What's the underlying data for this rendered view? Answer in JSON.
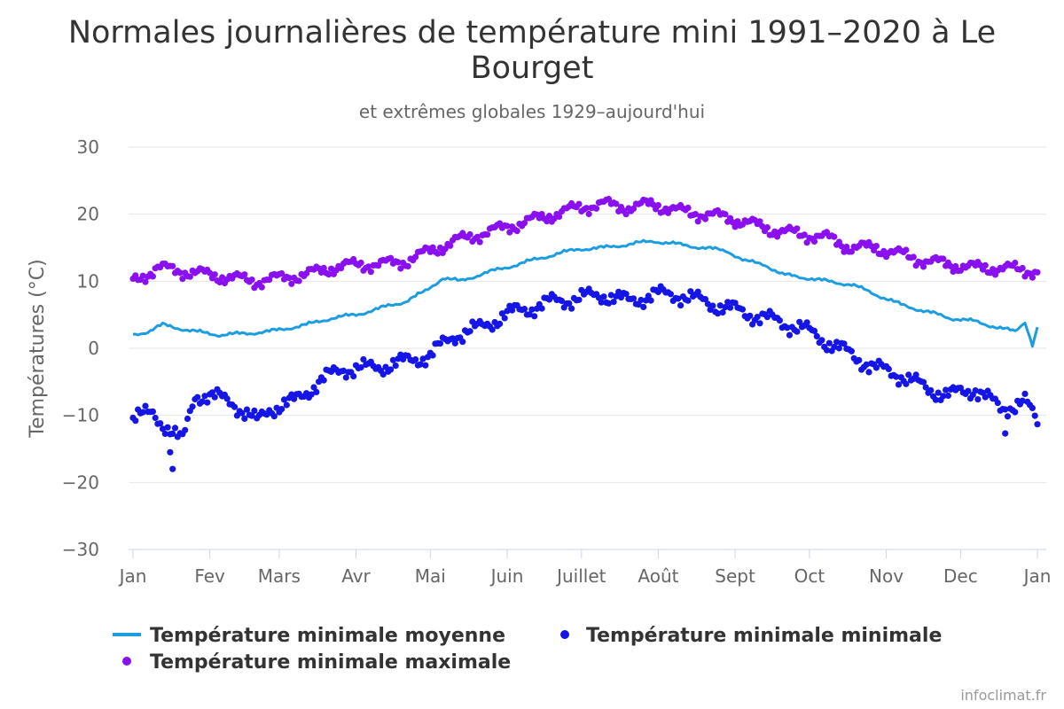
{
  "chart_data": {
    "type": "line",
    "title_lines": [
      "Normales journalières de température mini 1991–2020 à Le",
      "Bourget"
    ],
    "subtitle": "et extrêmes globales 1929–aujourd'hui",
    "ylabel": "Températures (°C)",
    "ylim": [
      -30,
      30
    ],
    "yticks": [
      -30,
      -20,
      -10,
      0,
      10,
      20,
      30
    ],
    "ytick_labels": [
      "−30",
      "−20",
      "−10",
      "0",
      "10",
      "20",
      "30"
    ],
    "x_unit": "day_of_year",
    "xlim": [
      0,
      365
    ],
    "month_ticks": [
      {
        "label": "Jan",
        "day": 0
      },
      {
        "label": "Fev",
        "day": 31
      },
      {
        "label": "Mars",
        "day": 59
      },
      {
        "label": "Avr",
        "day": 90
      },
      {
        "label": "Mai",
        "day": 120
      },
      {
        "label": "Juin",
        "day": 151
      },
      {
        "label": "Juillet",
        "day": 181
      },
      {
        "label": "Août",
        "day": 212
      },
      {
        "label": "Sept",
        "day": 243
      },
      {
        "label": "Oct",
        "day": 273
      },
      {
        "label": "Nov",
        "day": 304
      },
      {
        "label": "Dec",
        "day": 334
      },
      {
        "label": "Jan",
        "day": 365
      }
    ],
    "series": [
      {
        "name": "Température minimale moyenne",
        "kind": "line",
        "color": "#1b9de2",
        "anchors": [
          [
            0,
            2.0
          ],
          [
            6,
            2.5
          ],
          [
            12,
            3.5
          ],
          [
            25,
            2.5
          ],
          [
            35,
            2.0
          ],
          [
            45,
            2.2
          ],
          [
            55,
            2.5
          ],
          [
            70,
            3.5
          ],
          [
            80,
            4.5
          ],
          [
            90,
            5.0
          ],
          [
            100,
            6.0
          ],
          [
            110,
            7.0
          ],
          [
            118,
            8.5
          ],
          [
            125,
            10.5
          ],
          [
            132,
            10.0
          ],
          [
            140,
            11.0
          ],
          [
            150,
            12.0
          ],
          [
            160,
            13.0
          ],
          [
            170,
            14.0
          ],
          [
            180,
            14.8
          ],
          [
            190,
            15.0
          ],
          [
            200,
            15.5
          ],
          [
            210,
            16.0
          ],
          [
            220,
            15.5
          ],
          [
            230,
            15.0
          ],
          [
            240,
            14.5
          ],
          [
            247,
            13.0
          ],
          [
            255,
            12.5
          ],
          [
            262,
            11.0
          ],
          [
            272,
            10.5
          ],
          [
            280,
            10.0
          ],
          [
            290,
            9.5
          ],
          [
            300,
            8.0
          ],
          [
            310,
            6.5
          ],
          [
            320,
            5.5
          ],
          [
            330,
            4.5
          ],
          [
            340,
            4.0
          ],
          [
            350,
            3.0
          ],
          [
            356,
            2.5
          ],
          [
            360,
            4.0
          ],
          [
            363,
            0.5
          ],
          [
            365,
            3.0
          ]
        ],
        "noise": 0.35
      },
      {
        "name": "Température minimale minimale",
        "kind": "scatter",
        "color": "#1515e6",
        "anchors": [
          [
            0,
            -10
          ],
          [
            8,
            -10
          ],
          [
            15,
            -12
          ],
          [
            20,
            -14
          ],
          [
            25,
            -7
          ],
          [
            30,
            -7
          ],
          [
            40,
            -8
          ],
          [
            50,
            -11
          ],
          [
            55,
            -9
          ],
          [
            65,
            -8
          ],
          [
            75,
            -5
          ],
          [
            85,
            -3
          ],
          [
            95,
            -3
          ],
          [
            110,
            -2
          ],
          [
            120,
            -1
          ],
          [
            130,
            2
          ],
          [
            140,
            3
          ],
          [
            150,
            5
          ],
          [
            160,
            6
          ],
          [
            170,
            7
          ],
          [
            180,
            7.5
          ],
          [
            190,
            8
          ],
          [
            200,
            7
          ],
          [
            210,
            8
          ],
          [
            220,
            8
          ],
          [
            230,
            7
          ],
          [
            240,
            6
          ],
          [
            250,
            5
          ],
          [
            260,
            4
          ],
          [
            270,
            3
          ],
          [
            280,
            1
          ],
          [
            290,
            -1
          ],
          [
            300,
            -3
          ],
          [
            310,
            -4
          ],
          [
            320,
            -6
          ],
          [
            330,
            -7
          ],
          [
            340,
            -6
          ],
          [
            350,
            -9
          ],
          [
            360,
            -8
          ],
          [
            365,
            -11
          ]
        ],
        "noise": 1.6
      },
      {
        "name": "Température minimale maximale",
        "kind": "scatter",
        "color": "#8a10f0",
        "anchors": [
          [
            0,
            10
          ],
          [
            10,
            12
          ],
          [
            20,
            11.5
          ],
          [
            30,
            11
          ],
          [
            40,
            10.5
          ],
          [
            50,
            10
          ],
          [
            60,
            10.5
          ],
          [
            70,
            11
          ],
          [
            80,
            12
          ],
          [
            90,
            12.5
          ],
          [
            100,
            12.5
          ],
          [
            110,
            13
          ],
          [
            120,
            14.5
          ],
          [
            130,
            16
          ],
          [
            140,
            17
          ],
          [
            150,
            18
          ],
          [
            160,
            19
          ],
          [
            170,
            20
          ],
          [
            180,
            21
          ],
          [
            190,
            21.5
          ],
          [
            200,
            21
          ],
          [
            210,
            21.5
          ],
          [
            220,
            20.5
          ],
          [
            230,
            20
          ],
          [
            240,
            19.5
          ],
          [
            250,
            18.5
          ],
          [
            260,
            17.5
          ],
          [
            270,
            17
          ],
          [
            280,
            16.5
          ],
          [
            290,
            15
          ],
          [
            300,
            15
          ],
          [
            310,
            14
          ],
          [
            320,
            13
          ],
          [
            330,
            12.5
          ],
          [
            340,
            12
          ],
          [
            350,
            12
          ],
          [
            365,
            11.5
          ]
        ],
        "noise": 1.2
      }
    ],
    "outliers": [
      {
        "series": 1,
        "day": 16,
        "value": -18
      },
      {
        "series": 1,
        "day": 15,
        "value": -15.5
      },
      {
        "series": 1,
        "day": 352,
        "value": -12.7
      }
    ],
    "legend": {
      "position": "bottom",
      "items": [
        {
          "label": "Température minimale moyenne",
          "symbol": "line",
          "color": "#1b9de2"
        },
        {
          "label": "Température minimale minimale",
          "symbol": "dot",
          "color": "#1515e6"
        },
        {
          "label": "Température minimale maximale",
          "symbol": "dot",
          "color": "#8a10f0"
        }
      ]
    },
    "credit": "infoclimat.fr"
  }
}
